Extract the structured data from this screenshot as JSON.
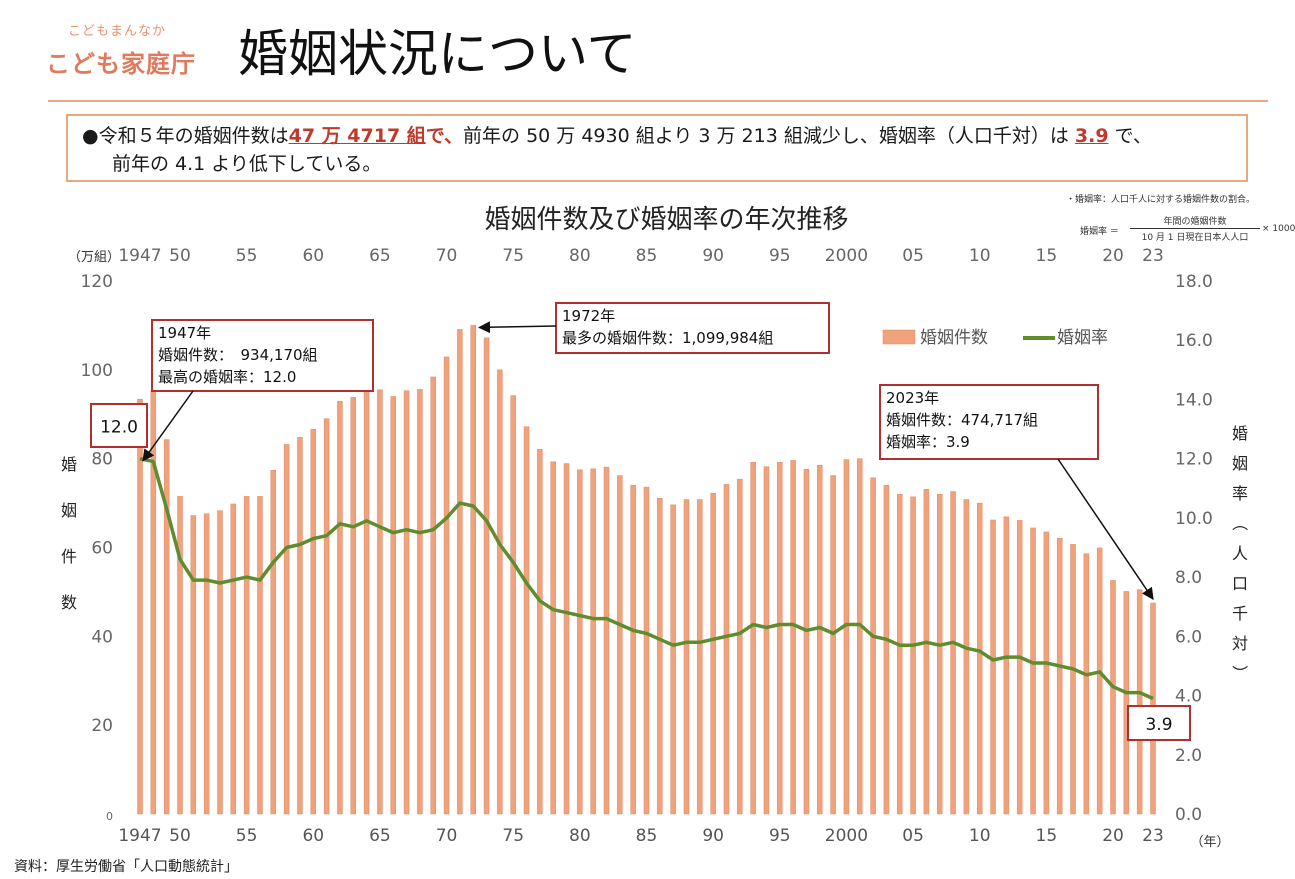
{
  "header": {
    "logo_sub": "こどもまんなか",
    "logo_main": "こども家庭庁",
    "title": "婚姻状況について"
  },
  "summary": {
    "bullet": "●",
    "p1": "令和５年の婚姻件数は",
    "hl1": "47 万 4717 組",
    "hl1_tail": "で、",
    "p2": "前年の 50 万 4930 組より 3 万 213 組減少し、婚姻率（人口千対）は",
    "hl2": "3.9",
    "p3": "で、",
    "line2": "前年の 4.1 より低下している。"
  },
  "formula": {
    "note": "・婚姻率：人口千人に対する婚姻件数の割合。",
    "lhs": "婚姻率 ＝",
    "numerator": "年間の婚姻件数",
    "denominator": "10 月 1 日現在日本人人口",
    "multiplier": "× 1000"
  },
  "source": "資料：厚生労働省「人口動態統計」",
  "colors": {
    "bar": "#efa27c",
    "bar_edge": "#e08a62",
    "line": "#5f8c2e",
    "callout_border": "#b03030",
    "accent": "#c0392b"
  },
  "chart_data": {
    "type": "bar+line",
    "title": "婚姻件数及び婚姻率の年次推移",
    "x": [
      1947,
      1948,
      1949,
      1950,
      1951,
      1952,
      1953,
      1954,
      1955,
      1956,
      1957,
      1958,
      1959,
      1960,
      1961,
      1962,
      1963,
      1964,
      1965,
      1966,
      1967,
      1968,
      1969,
      1970,
      1971,
      1972,
      1973,
      1974,
      1975,
      1976,
      1977,
      1978,
      1979,
      1980,
      1981,
      1982,
      1983,
      1984,
      1985,
      1986,
      1987,
      1988,
      1989,
      1990,
      1991,
      1992,
      1993,
      1994,
      1995,
      1996,
      1997,
      1998,
      1999,
      2000,
      2001,
      2002,
      2003,
      2004,
      2005,
      2006,
      2007,
      2008,
      2009,
      2010,
      2011,
      2012,
      2013,
      2014,
      2015,
      2016,
      2017,
      2018,
      2019,
      2020,
      2021,
      2022,
      2023
    ],
    "x_tick_labels": [
      "1947",
      "50",
      "55",
      "60",
      "65",
      "70",
      "75",
      "80",
      "85",
      "90",
      "95",
      "2000",
      "05",
      "10",
      "15",
      "20",
      "23"
    ],
    "x_tick_years": [
      1947,
      1950,
      1955,
      1960,
      1965,
      1970,
      1975,
      1980,
      1985,
      1990,
      1995,
      2000,
      2005,
      2010,
      2015,
      2020,
      2023
    ],
    "xlabel": "（年）",
    "series": [
      {
        "name": "婚姻件数",
        "kind": "bar",
        "axis": "left",
        "values": [
          93.4,
          95.3,
          84.3,
          71.5,
          67.2,
          67.6,
          68.3,
          69.8,
          71.5,
          71.5,
          77.4,
          83.2,
          84.8,
          86.6,
          89.0,
          92.9,
          93.8,
          96.3,
          95.5,
          94.0,
          95.3,
          95.6,
          98.4,
          102.9,
          109.1,
          110.0,
          107.2,
          100.0,
          94.2,
          87.2,
          82.1,
          79.3,
          78.9,
          77.5,
          77.7,
          78.1,
          76.2,
          74.0,
          73.6,
          71.1,
          69.6,
          70.8,
          70.8,
          72.2,
          74.2,
          75.4,
          79.2,
          78.2,
          79.2,
          79.6,
          77.6,
          78.5,
          76.2,
          79.8,
          80.0,
          75.7,
          74.0,
          72.0,
          71.4,
          73.1,
          72.0,
          72.6,
          70.8,
          70.0,
          66.2,
          66.9,
          66.1,
          64.4,
          63.5,
          62.1,
          60.7,
          58.6,
          59.9,
          52.6,
          50.1,
          50.5,
          47.5
        ]
      },
      {
        "name": "婚姻率",
        "kind": "line",
        "axis": "right",
        "values": [
          12.0,
          11.9,
          10.3,
          8.6,
          7.9,
          7.9,
          7.8,
          7.9,
          8.0,
          7.9,
          8.5,
          9.0,
          9.1,
          9.3,
          9.4,
          9.8,
          9.7,
          9.9,
          9.7,
          9.5,
          9.6,
          9.5,
          9.6,
          10.0,
          10.5,
          10.4,
          9.9,
          9.1,
          8.5,
          7.8,
          7.2,
          6.9,
          6.8,
          6.7,
          6.6,
          6.6,
          6.4,
          6.2,
          6.1,
          5.9,
          5.7,
          5.8,
          5.8,
          5.9,
          6.0,
          6.1,
          6.4,
          6.3,
          6.4,
          6.4,
          6.2,
          6.3,
          6.1,
          6.4,
          6.4,
          6.0,
          5.9,
          5.7,
          5.7,
          5.8,
          5.7,
          5.8,
          5.6,
          5.5,
          5.2,
          5.3,
          5.3,
          5.1,
          5.1,
          5.0,
          4.9,
          4.7,
          4.8,
          4.3,
          4.1,
          4.1,
          3.9
        ]
      }
    ],
    "y_left": {
      "label": "婚姻件数",
      "unit": "（万組）",
      "ylim": [
        0,
        120
      ],
      "ticks": [
        "0",
        "20",
        "40",
        "60",
        "80",
        "100",
        "120"
      ]
    },
    "y_right": {
      "label": "婚姻率（人口千対）",
      "ylim": [
        0,
        18
      ],
      "ticks": [
        "0.0",
        "2.0",
        "4.0",
        "6.0",
        "8.0",
        "10.0",
        "12.0",
        "14.0",
        "16.0",
        "18.0"
      ]
    },
    "legend": {
      "placement": "top-right",
      "bar_label": "婚姻件数",
      "line_label": "婚姻率"
    },
    "annotations": [
      {
        "id": "a1947",
        "lines": [
          "1947年",
          "婚姻件数：　934,170組",
          "最高の婚姻率：12.0"
        ],
        "year": 1947
      },
      {
        "id": "a1972",
        "lines": [
          "1972年",
          "最多の婚姻件数：1,099,984組"
        ],
        "year": 1972
      },
      {
        "id": "a2023",
        "lines": [
          "2023年",
          "婚姻件数：474,717組",
          "婚姻率：3.9"
        ],
        "year": 2023
      },
      {
        "id": "v1947",
        "lines": [
          "12.0"
        ],
        "year": 1947
      },
      {
        "id": "v2023",
        "lines": [
          "3.9"
        ],
        "year": 2023
      }
    ],
    "grid": false
  }
}
